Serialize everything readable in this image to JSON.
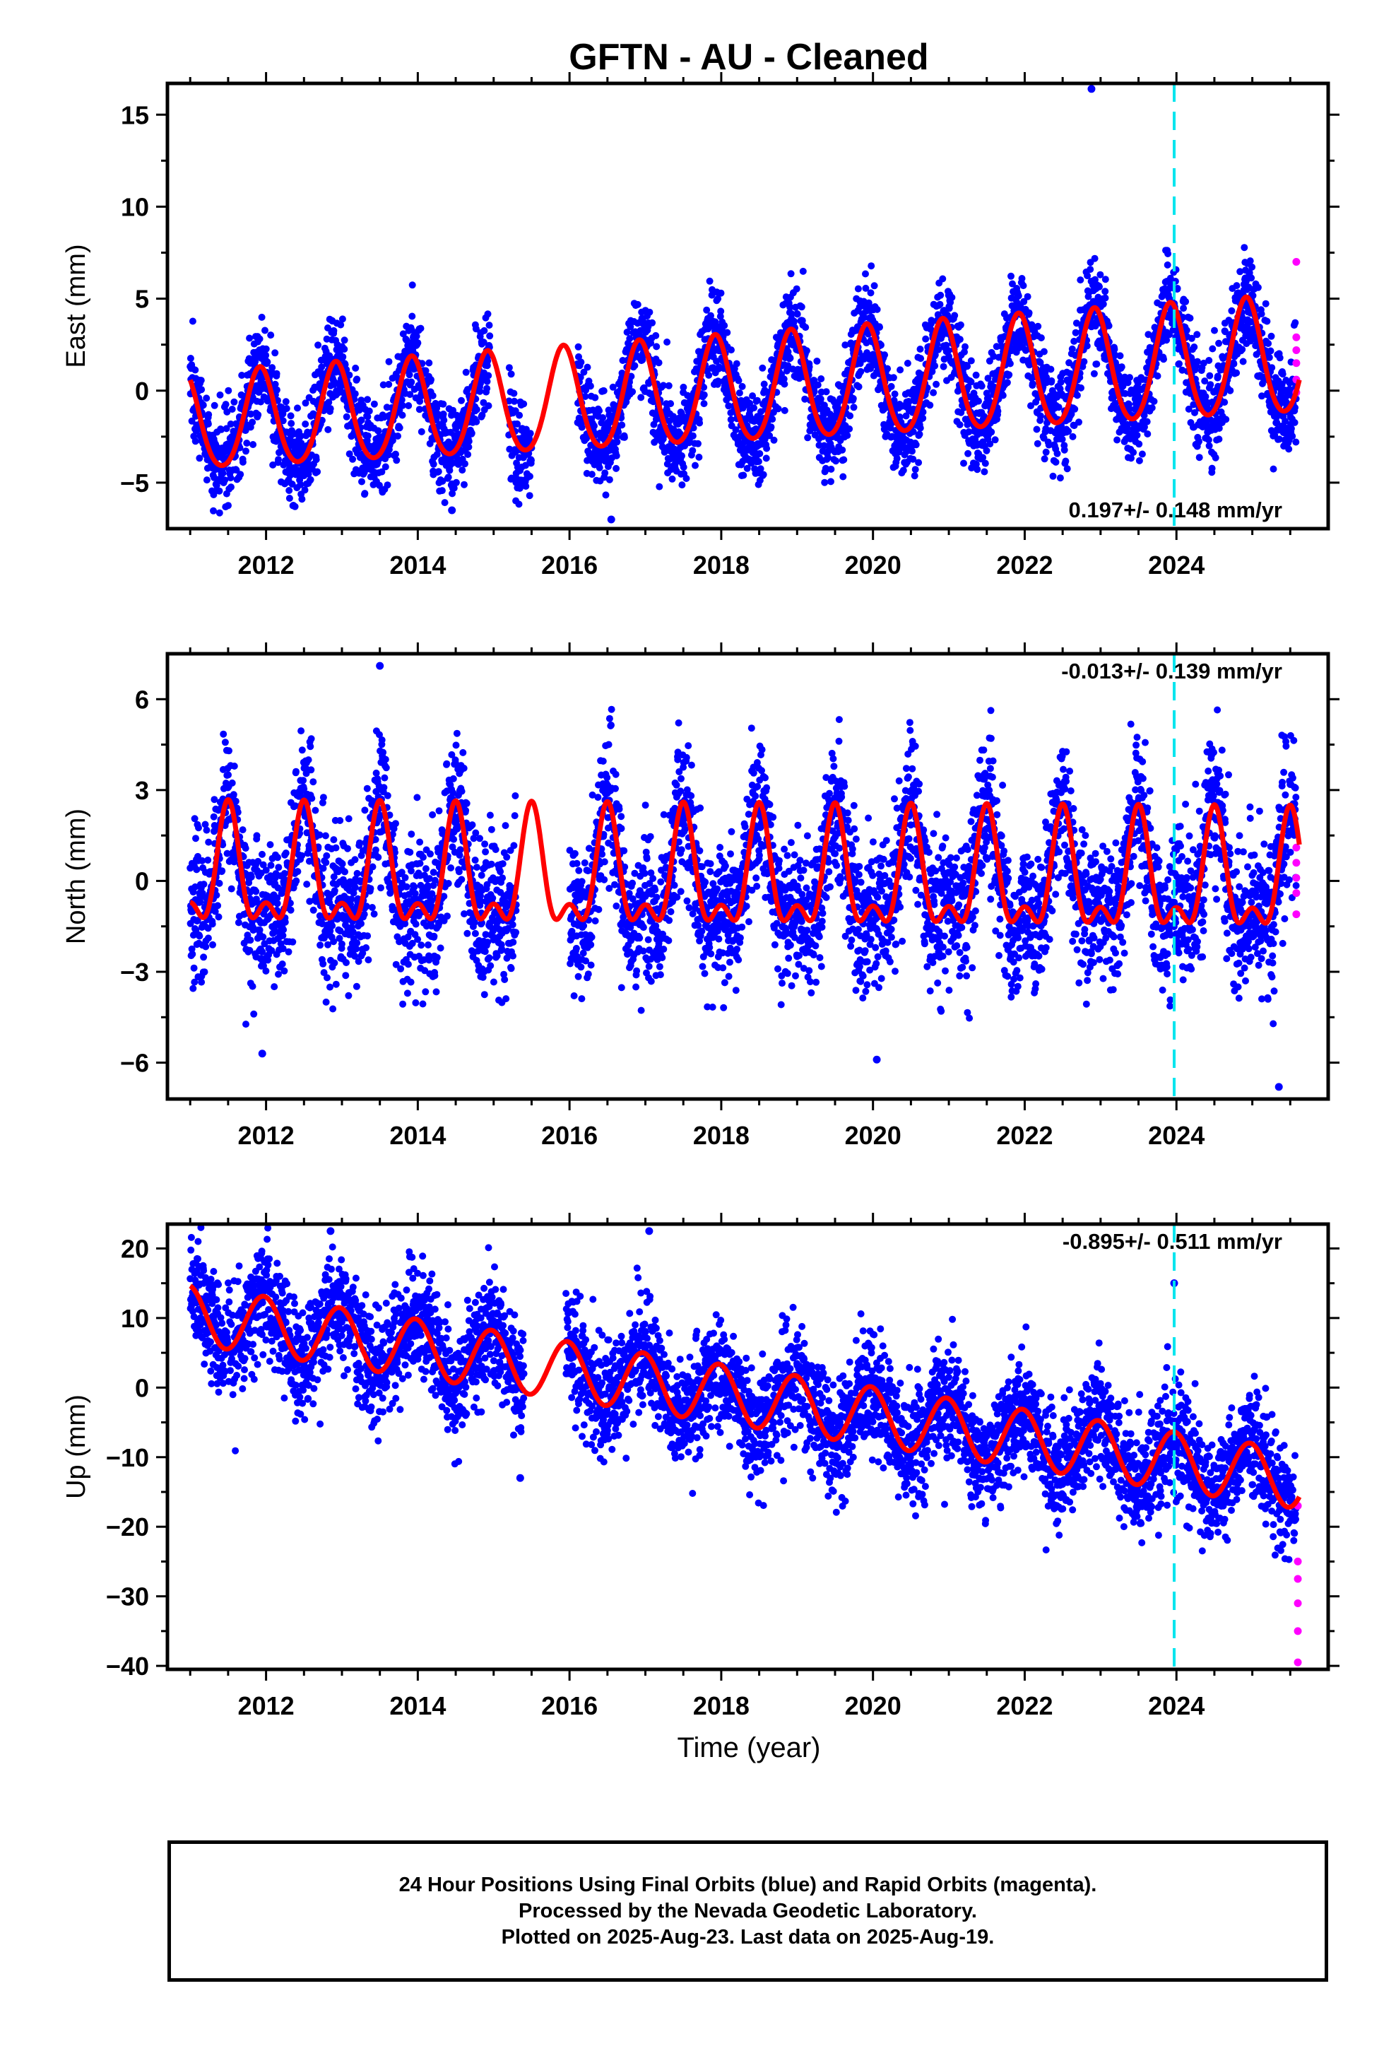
{
  "title": "GFTN  - AU - Cleaned",
  "xlabel": "Time (year)",
  "footer": {
    "line1": "24 Hour Positions Using Final Orbits (blue) and Rapid Orbits (magenta).",
    "line2": "Processed by the Nevada Geodetic Laboratory.",
    "line3": "Plotted on 2025-Aug-23. Last data on 2025-Aug-19."
  },
  "colors": {
    "final_points": "#0000ff",
    "rapid_points": "#ff00ff",
    "model_fit": "#ff0000",
    "event_line": "#00e5ee"
  },
  "chart_data": [
    {
      "type": "scatter",
      "name": "east",
      "ylabel": "East (mm)",
      "xlim": [
        2010.7,
        2026.0
      ],
      "ylim": [
        -7.5,
        16.7
      ],
      "xticks": [
        2012,
        2014,
        2016,
        2018,
        2020,
        2022,
        2024
      ],
      "yticks": [
        -5,
        0,
        5,
        10,
        15
      ],
      "ytick_labels": [
        "−5",
        "0",
        "5",
        "10",
        "15"
      ],
      "event_line_year": 2023.97,
      "rate_label": "0.197+/- 0.148 mm/yr",
      "rate_position": "bottom-right",
      "model": {
        "offset": -0.1,
        "rate": 0.197,
        "annual_amp": 2.6,
        "annual_amp_end": 3.2,
        "annual_peak_phase": 0.92,
        "semiannual_amp": 0.3,
        "scatter_sd": 1.3
      },
      "gaps": [
        [
          2014.95,
          2015.2
        ],
        [
          2015.5,
          2016.1
        ]
      ],
      "outliers": [
        [
          2022.88,
          16.4
        ],
        [
          2014.45,
          -6.5
        ],
        [
          2016.55,
          -7.0
        ]
      ],
      "rapid_points": [
        [
          2025.58,
          7.0
        ],
        [
          2025.58,
          2.9
        ],
        [
          2025.58,
          2.2
        ],
        [
          2025.58,
          1.5
        ],
        [
          2025.58,
          0.6
        ],
        [
          2025.58,
          -0.1
        ]
      ]
    },
    {
      "type": "scatter",
      "name": "north",
      "ylabel": "North (mm)",
      "xlim": [
        2010.7,
        2026.0
      ],
      "ylim": [
        -7.2,
        7.5
      ],
      "xticks": [
        2012,
        2014,
        2016,
        2018,
        2020,
        2022,
        2024
      ],
      "yticks": [
        -6,
        -3,
        0,
        3,
        6
      ],
      "ytick_labels": [
        "−6",
        "−3",
        "0",
        "3",
        "6"
      ],
      "event_line_year": 2023.97,
      "rate_label": "-0.013+/- 0.139 mm/yr",
      "rate_position": "top-right",
      "model": {
        "offset": 0.0,
        "rate": -0.013,
        "annual_amp": 1.7,
        "annual_peak_phase": 0.5,
        "semiannual_amp": 0.9,
        "scatter_sd": 1.2
      },
      "gaps": [
        [
          2015.3,
          2016.0
        ]
      ],
      "outliers": [
        [
          2013.5,
          7.1
        ],
        [
          2020.05,
          -5.9
        ],
        [
          2025.35,
          -6.8
        ],
        [
          2011.95,
          -5.7
        ]
      ],
      "rapid_points": [
        [
          2025.58,
          1.1
        ],
        [
          2025.58,
          0.6
        ],
        [
          2025.58,
          0.1
        ],
        [
          2025.58,
          -0.4
        ],
        [
          2025.58,
          -1.1
        ]
      ]
    },
    {
      "type": "scatter",
      "name": "up",
      "ylabel": "Up (mm)",
      "xlim": [
        2010.7,
        2026.0
      ],
      "ylim": [
        -40.5,
        23.5
      ],
      "xticks": [
        2012,
        2014,
        2016,
        2018,
        2020,
        2022,
        2024
      ],
      "yticks": [
        -40,
        -30,
        -20,
        -10,
        0,
        10,
        20
      ],
      "ytick_labels": [
        "−40",
        "−30",
        "−20",
        "−10",
        "0",
        "10",
        "20"
      ],
      "event_line_year": 2023.97,
      "rate_label": "-0.895+/- 0.511 mm/yr",
      "rate_position": "top-right",
      "model": {
        "start_value": 10.5,
        "end_value": -13.2,
        "annual_amp": 4.2,
        "annual_peak_phase": 0.97,
        "scatter_sd": 4.0
      },
      "gaps": [
        [
          2015.4,
          2015.95
        ]
      ],
      "outliers": [
        [
          2012.85,
          22.5
        ],
        [
          2017.05,
          22.5
        ],
        [
          2023.97,
          15.0
        ],
        [
          2015.35,
          -13.0
        ]
      ],
      "rapid_points": [
        [
          2025.6,
          -17.0
        ],
        [
          2025.6,
          -25.0
        ],
        [
          2025.6,
          -27.5
        ],
        [
          2025.6,
          -31.0
        ],
        [
          2025.6,
          -35.0
        ],
        [
          2025.6,
          -39.5
        ]
      ]
    }
  ]
}
